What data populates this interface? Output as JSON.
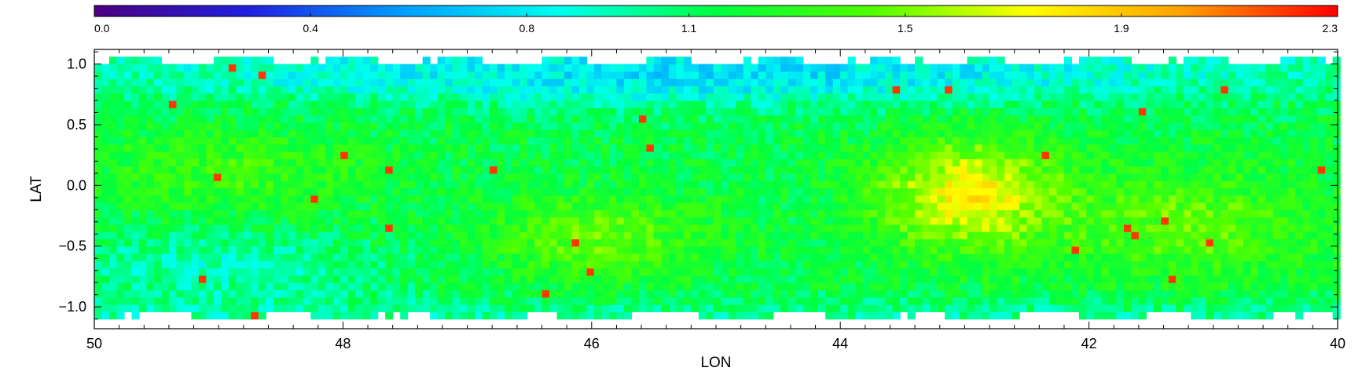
{
  "chart_data": {
    "type": "heatmap",
    "title": "",
    "xlabel": "LON",
    "ylabel": "LAT",
    "x_ticks": [
      50,
      48,
      46,
      44,
      42,
      40
    ],
    "x_tick_labels": [
      "50",
      "48",
      "46",
      "44",
      "42",
      "40"
    ],
    "xlim": [
      50,
      40
    ],
    "y_ticks": [
      1.0,
      0.5,
      0.0,
      -0.5,
      -1.0
    ],
    "y_tick_labels": [
      "1.0",
      "0.5",
      "0.0",
      "−0.5",
      "−1.0"
    ],
    "ylim": [
      -1.18,
      1.12
    ],
    "data_lat_range": [
      -1.1,
      1.05
    ],
    "colorbar": {
      "position": "top",
      "min": 0.0,
      "max": 2.3,
      "tick_values": [
        0.0,
        0.4,
        0.8,
        1.1,
        1.5,
        1.9,
        2.3
      ],
      "tick_labels": [
        "0.0",
        "0.4",
        "0.8",
        "1.1",
        "1.5",
        "1.9",
        "2.3"
      ],
      "colormap": [
        "#4a0080",
        "#2020e0",
        "#00a0ff",
        "#00ffee",
        "#00ff40",
        "#50ff00",
        "#ffff00",
        "#ffa000",
        "#ff0000"
      ]
    },
    "features": [
      {
        "lon": 43.0,
        "lat": -0.1,
        "radius_lon": 0.75,
        "radius_lat": 0.45,
        "value": 1.75
      },
      {
        "lon": 46.0,
        "lat": -0.45,
        "radius_lon": 0.9,
        "radius_lat": 0.35,
        "value": 1.45
      },
      {
        "lon": 48.9,
        "lat": 0.1,
        "radius_lon": 1.1,
        "radius_lat": 0.35,
        "value": 1.35
      },
      {
        "lon": 41.2,
        "lat": -0.35,
        "radius_lon": 1.0,
        "radius_lat": 0.45,
        "value": 1.45
      },
      {
        "lon": 45.2,
        "lat": 0.85,
        "radius_lon": 4.5,
        "radius_lat": 0.25,
        "value": 0.85
      },
      {
        "lon": 49.0,
        "lat": -0.7,
        "radius_lon": 1.4,
        "radius_lat": 0.3,
        "value": 0.95
      }
    ],
    "background_value": 1.15,
    "grid": false
  }
}
